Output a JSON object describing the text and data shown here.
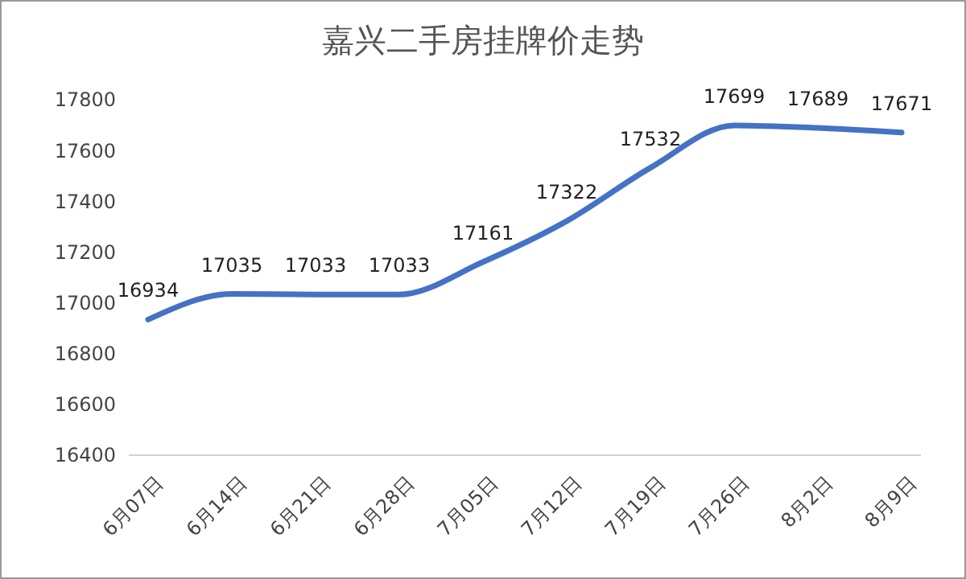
{
  "chart_data": {
    "type": "line",
    "title": "嘉兴二手房挂牌价走势",
    "categories": [
      "6月07日",
      "6月14日",
      "6月21日",
      "6月28日",
      "7月05日",
      "7月12日",
      "7月19日",
      "7月26日",
      "8月2日",
      "8月9日"
    ],
    "series": [
      {
        "color": "#4472c4",
        "values": [
          16934,
          17035,
          17033,
          17033,
          17161,
          17322,
          17532,
          17699,
          17689,
          17671
        ]
      }
    ],
    "ylim": [
      16400,
      17800
    ],
    "yticks": [
      16400,
      16600,
      16800,
      17000,
      17200,
      17400,
      17600,
      17800
    ],
    "data_labels": true,
    "grid": false,
    "marker": "none",
    "line_style": "solid"
  }
}
